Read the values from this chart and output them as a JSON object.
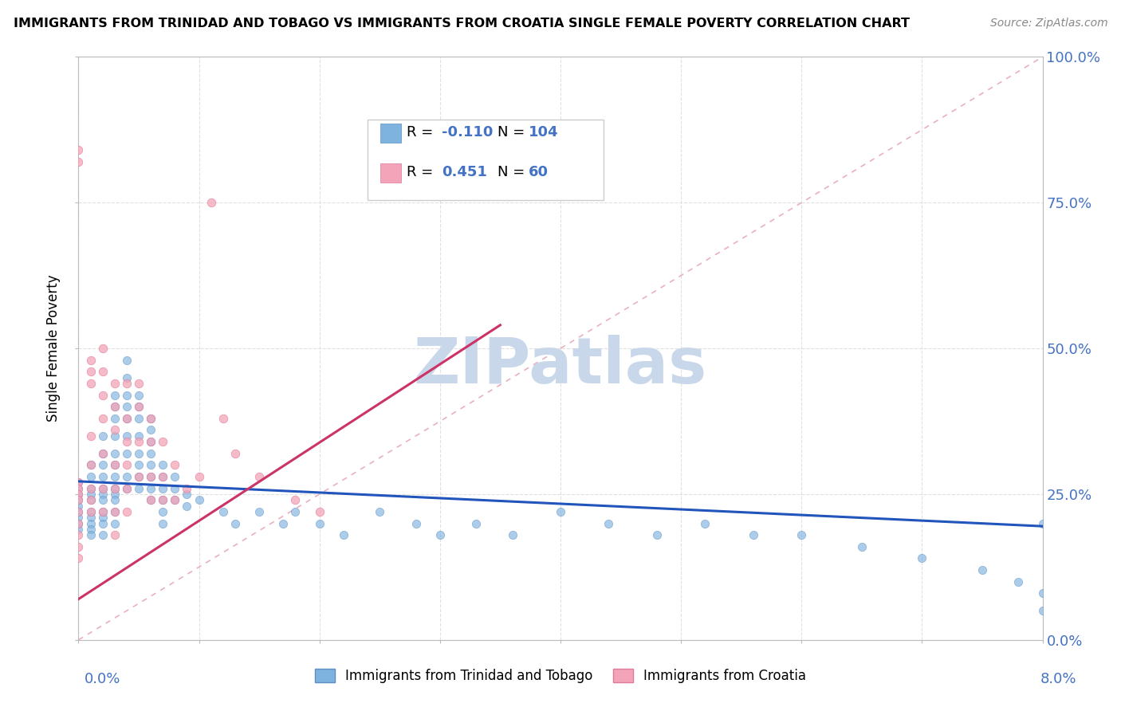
{
  "title": "IMMIGRANTS FROM TRINIDAD AND TOBAGO VS IMMIGRANTS FROM CROATIA SINGLE FEMALE POVERTY CORRELATION CHART",
  "source": "Source: ZipAtlas.com",
  "ylabel": "Single Female Poverty",
  "legend_series1_label": "Immigrants from Trinidad and Tobago",
  "legend_series2_label": "Immigrants from Croatia",
  "blue_scatter_color": "#7eb3e0",
  "blue_edge_color": "#5b8fc4",
  "pink_scatter_color": "#f4a4b8",
  "pink_edge_color": "#e07898",
  "trendline_blue_color": "#2255bb",
  "trendline_pink_color": "#cc3366",
  "diagonal_color": "#e8b0c0",
  "watermark_color": "#c8d8ea",
  "grid_color": "#e0e0e0",
  "right_axis_color": "#4472c4",
  "xmin": 0.0,
  "xmax": 0.08,
  "ymin": 0.0,
  "ymax": 1.0,
  "ytick_vals": [
    0.0,
    0.25,
    0.5,
    0.75,
    1.0
  ],
  "ytick_labels": [
    "0.0%",
    "25.0%",
    "50.0%",
    "75.0%",
    "100.0%"
  ],
  "xtick_labels_left": "0.0%",
  "xtick_labels_right": "8.0%",
  "R1": -0.11,
  "N1": 104,
  "R2": 0.451,
  "N2": 60,
  "blue_trendline_x": [
    0.0,
    0.08
  ],
  "blue_trendline_y": [
    0.272,
    0.195
  ],
  "pink_trendline_x": [
    0.0,
    0.035
  ],
  "pink_trendline_y": [
    0.07,
    0.54
  ],
  "blue_x": [
    0.0,
    0.0,
    0.0,
    0.0,
    0.0,
    0.0,
    0.0,
    0.0,
    0.0,
    0.001,
    0.001,
    0.001,
    0.001,
    0.001,
    0.001,
    0.001,
    0.001,
    0.001,
    0.001,
    0.002,
    0.002,
    0.002,
    0.002,
    0.002,
    0.002,
    0.002,
    0.002,
    0.002,
    0.002,
    0.002,
    0.003,
    0.003,
    0.003,
    0.003,
    0.003,
    0.003,
    0.003,
    0.003,
    0.003,
    0.003,
    0.003,
    0.003,
    0.004,
    0.004,
    0.004,
    0.004,
    0.004,
    0.004,
    0.004,
    0.004,
    0.004,
    0.005,
    0.005,
    0.005,
    0.005,
    0.005,
    0.005,
    0.005,
    0.005,
    0.006,
    0.006,
    0.006,
    0.006,
    0.006,
    0.006,
    0.006,
    0.006,
    0.007,
    0.007,
    0.007,
    0.007,
    0.007,
    0.007,
    0.008,
    0.008,
    0.008,
    0.009,
    0.009,
    0.01,
    0.012,
    0.013,
    0.015,
    0.017,
    0.018,
    0.02,
    0.022,
    0.025,
    0.028,
    0.03,
    0.033,
    0.036,
    0.04,
    0.044,
    0.048,
    0.052,
    0.056,
    0.06,
    0.065,
    0.07,
    0.075,
    0.078,
    0.08,
    0.08,
    0.08
  ],
  "blue_y": [
    0.27,
    0.26,
    0.25,
    0.24,
    0.23,
    0.22,
    0.21,
    0.2,
    0.19,
    0.3,
    0.28,
    0.26,
    0.25,
    0.24,
    0.22,
    0.21,
    0.2,
    0.19,
    0.18,
    0.35,
    0.32,
    0.3,
    0.28,
    0.26,
    0.25,
    0.24,
    0.22,
    0.21,
    0.2,
    0.18,
    0.42,
    0.4,
    0.38,
    0.35,
    0.32,
    0.3,
    0.28,
    0.26,
    0.25,
    0.24,
    0.22,
    0.2,
    0.48,
    0.45,
    0.42,
    0.4,
    0.38,
    0.35,
    0.32,
    0.28,
    0.26,
    0.42,
    0.4,
    0.38,
    0.35,
    0.32,
    0.3,
    0.28,
    0.26,
    0.38,
    0.36,
    0.34,
    0.32,
    0.3,
    0.28,
    0.26,
    0.24,
    0.3,
    0.28,
    0.26,
    0.24,
    0.22,
    0.2,
    0.28,
    0.26,
    0.24,
    0.25,
    0.23,
    0.24,
    0.22,
    0.2,
    0.22,
    0.2,
    0.22,
    0.2,
    0.18,
    0.22,
    0.2,
    0.18,
    0.2,
    0.18,
    0.22,
    0.2,
    0.18,
    0.2,
    0.18,
    0.18,
    0.16,
    0.14,
    0.12,
    0.1,
    0.08,
    0.2,
    0.05
  ],
  "pink_x": [
    0.0,
    0.0,
    0.0,
    0.0,
    0.0,
    0.0,
    0.0,
    0.0,
    0.0,
    0.0,
    0.0,
    0.001,
    0.001,
    0.001,
    0.001,
    0.001,
    0.001,
    0.001,
    0.001,
    0.002,
    0.002,
    0.002,
    0.002,
    0.002,
    0.002,
    0.002,
    0.003,
    0.003,
    0.003,
    0.003,
    0.003,
    0.003,
    0.003,
    0.004,
    0.004,
    0.004,
    0.004,
    0.004,
    0.004,
    0.005,
    0.005,
    0.005,
    0.005,
    0.006,
    0.006,
    0.006,
    0.006,
    0.007,
    0.007,
    0.007,
    0.008,
    0.008,
    0.009,
    0.01,
    0.011,
    0.012,
    0.013,
    0.015,
    0.018,
    0.02
  ],
  "pink_y": [
    0.27,
    0.26,
    0.25,
    0.24,
    0.22,
    0.2,
    0.18,
    0.16,
    0.14,
    0.84,
    0.82,
    0.48,
    0.46,
    0.44,
    0.35,
    0.3,
    0.26,
    0.24,
    0.22,
    0.5,
    0.46,
    0.42,
    0.38,
    0.32,
    0.26,
    0.22,
    0.44,
    0.4,
    0.36,
    0.3,
    0.26,
    0.22,
    0.18,
    0.38,
    0.34,
    0.3,
    0.26,
    0.22,
    0.44,
    0.44,
    0.4,
    0.34,
    0.28,
    0.38,
    0.34,
    0.28,
    0.24,
    0.34,
    0.28,
    0.24,
    0.3,
    0.24,
    0.26,
    0.28,
    0.75,
    0.38,
    0.32,
    0.28,
    0.24,
    0.22
  ]
}
